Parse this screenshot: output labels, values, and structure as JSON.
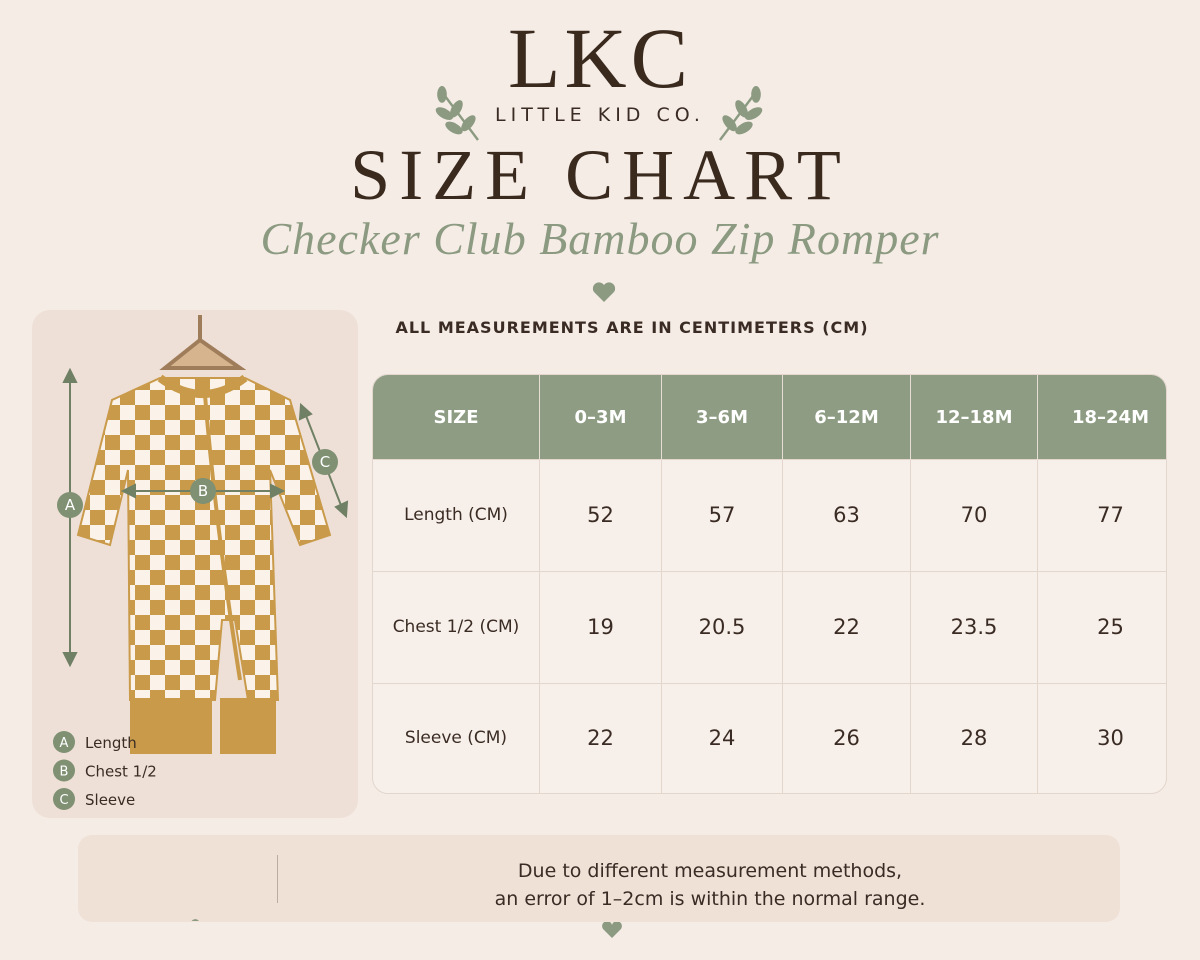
{
  "header": {
    "brand": "LKC",
    "brand_sub": "LITTLE KID CO.",
    "title": "SIZE CHART",
    "product": "Checker Club Bamboo Zip Romper"
  },
  "units_note": "ALL MEASUREMENTS ARE IN CENTIMETERS (CM)",
  "table": {
    "header": [
      "SIZE",
      "0–3M",
      "3–6M",
      "6–12M",
      "12–18M",
      "18–24M"
    ],
    "rows": [
      [
        "Length (CM)",
        "52",
        "57",
        "63",
        "70",
        "77"
      ],
      [
        "Chest 1/2 (CM)",
        "19",
        "20.5",
        "22",
        "23.5",
        "25"
      ],
      [
        "Sleeve (CM)",
        "22",
        "24",
        "26",
        "28",
        "30"
      ]
    ]
  },
  "legend": [
    {
      "letter": "A",
      "label": "Length"
    },
    {
      "letter": "B",
      "label": "Chest 1/2"
    },
    {
      "letter": "C",
      "label": "Sleeve"
    }
  ],
  "note": [
    "Due to different measurement methods,",
    "an error of 1–2cm is within the normal range."
  ]
}
